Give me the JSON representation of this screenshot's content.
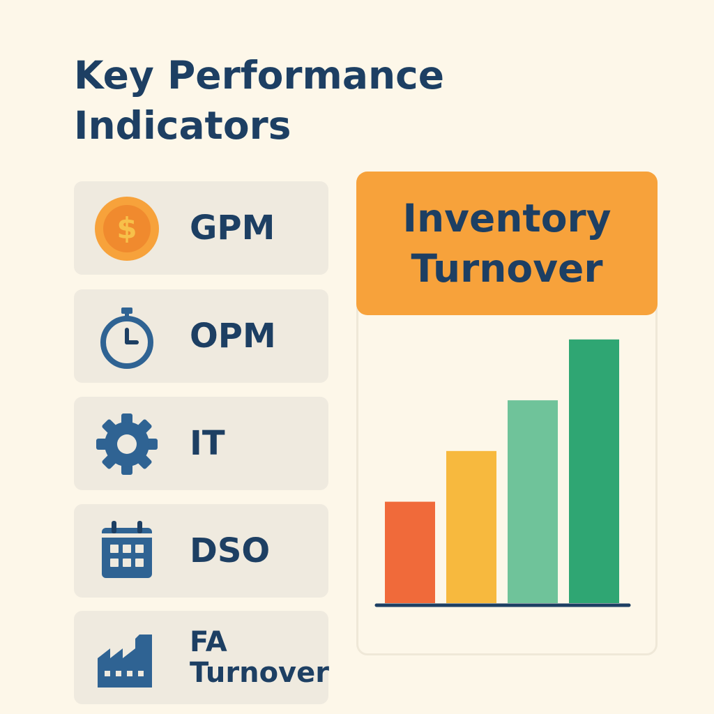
{
  "title": {
    "line1": "Key Performance",
    "line2": "Indicators"
  },
  "kpis": [
    {
      "label": "GPM",
      "icon": "dollar-coin-icon"
    },
    {
      "label": "OPM",
      "icon": "stopwatch-icon"
    },
    {
      "label": "IT",
      "icon": "gear-icon"
    },
    {
      "label": "DSO",
      "icon": "calendar-icon"
    },
    {
      "label_line1": "FA",
      "label_line2": "Turnover",
      "icon": "factory-icon"
    }
  ],
  "panel": {
    "title_line1": "Inventory",
    "title_line2": "Turnover"
  },
  "colors": {
    "navy": "#1d3f63",
    "accent": "#f7a23b",
    "bar_colors": [
      "#f06a3a",
      "#f7b93e",
      "#6fc39a",
      "#2fa673"
    ]
  },
  "chart_data": {
    "type": "bar",
    "categories": [
      "",
      "",
      "",
      ""
    ],
    "values": [
      4,
      6,
      8,
      10.4
    ],
    "ylim": [
      0,
      11
    ],
    "title": "",
    "xlabel": "",
    "ylabel": ""
  }
}
